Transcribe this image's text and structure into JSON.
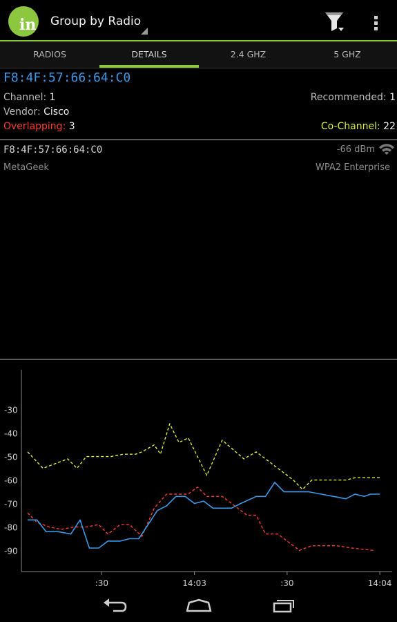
{
  "app": {
    "logo_text": "in",
    "title": "Group by Radio"
  },
  "tabs": [
    {
      "label": "RADIOS",
      "selected": false
    },
    {
      "label": "DETAILS",
      "selected": true
    },
    {
      "label": "2.4 GHZ",
      "selected": false
    },
    {
      "label": "5 GHZ",
      "selected": false
    }
  ],
  "details": {
    "mac": "F8:4F:57:66:64:C0",
    "channel_label": "Channel:",
    "channel_value": "1",
    "recommended_label": "Recommended:",
    "recommended_value": "1",
    "vendor_label": "Vendor:",
    "vendor_value": "Cisco",
    "overlapping_label": "Overlapping:",
    "overlapping_value": "3",
    "cochannel_label": "Co-Channel:",
    "cochannel_value": "22"
  },
  "access_point": {
    "mac": "F8:4F:57:66:64:C0",
    "signal": "-66 dBm",
    "vendor": "MetaGeek",
    "security": "WPA2 Enterprise"
  },
  "colors": {
    "accent": "#8dc63f",
    "selected_series": "#3c9ae8",
    "overlapping": "#ff3b2f",
    "cochannel": "#dcee3c"
  },
  "chart_data": {
    "type": "line",
    "y_ticks": [
      -30,
      -40,
      -50,
      -60,
      -70,
      -80,
      -90
    ],
    "ylim": [
      -99,
      -13
    ],
    "x_ticks": [
      {
        "label": ":30",
        "t": 27
      },
      {
        "label": "14:03",
        "t": 57
      },
      {
        "label": ":30",
        "t": 87
      },
      {
        "label": "14:04",
        "t": 117
      }
    ],
    "xlim": [
      1,
      121
    ],
    "series": [
      {
        "color": "#dcee3c",
        "dash": true,
        "points": [
          [
            3,
            -48
          ],
          [
            8,
            -55
          ],
          [
            14,
            -52
          ],
          [
            16,
            -51
          ],
          [
            19,
            -55
          ],
          [
            22,
            -50
          ],
          [
            30,
            -50
          ],
          [
            34,
            -49
          ],
          [
            38,
            -49
          ],
          [
            40,
            -48
          ],
          [
            44,
            -45
          ],
          [
            46,
            -49
          ],
          [
            49,
            -36
          ],
          [
            52,
            -44
          ],
          [
            55,
            -42
          ],
          [
            61,
            -58
          ],
          [
            66,
            -43
          ],
          [
            73,
            -51
          ],
          [
            77,
            -48
          ],
          [
            82,
            -53
          ],
          [
            86,
            -57
          ],
          [
            89,
            -60
          ],
          [
            92,
            -64
          ],
          [
            95,
            -60
          ],
          [
            106,
            -60
          ],
          [
            109,
            -59
          ],
          [
            117,
            -59
          ]
        ]
      },
      {
        "color": "#ff3b2f",
        "dash": true,
        "points": [
          [
            3,
            -74
          ],
          [
            6,
            -78
          ],
          [
            10,
            -80
          ],
          [
            14,
            -81
          ],
          [
            18,
            -80
          ],
          [
            22,
            -80
          ],
          [
            26,
            -79
          ],
          [
            29,
            -83
          ],
          [
            33,
            -79
          ],
          [
            36,
            -79
          ],
          [
            40,
            -84
          ],
          [
            44,
            -72
          ],
          [
            48,
            -66
          ],
          [
            55,
            -66
          ],
          [
            58,
            -63
          ],
          [
            61,
            -67
          ],
          [
            66,
            -67
          ],
          [
            71,
            -72
          ],
          [
            74,
            -75
          ],
          [
            77,
            -75
          ],
          [
            80,
            -83
          ],
          [
            84,
            -83
          ],
          [
            91,
            -90
          ],
          [
            95,
            -88
          ],
          [
            103,
            -88
          ],
          [
            108,
            -89
          ],
          [
            115,
            -90
          ]
        ]
      },
      {
        "color": "#3c9ae8",
        "dash": false,
        "points": [
          [
            3,
            -77
          ],
          [
            6,
            -77
          ],
          [
            9,
            -82
          ],
          [
            13,
            -82
          ],
          [
            17,
            -83
          ],
          [
            20,
            -77
          ],
          [
            23,
            -89
          ],
          [
            26,
            -89
          ],
          [
            29,
            -86
          ],
          [
            33,
            -86
          ],
          [
            36,
            -85
          ],
          [
            39,
            -85
          ],
          [
            45,
            -73
          ],
          [
            48,
            -71
          ],
          [
            51,
            -67
          ],
          [
            54,
            -67
          ],
          [
            57,
            -70
          ],
          [
            60,
            -69
          ],
          [
            63,
            -72
          ],
          [
            69,
            -72
          ],
          [
            72,
            -70
          ],
          [
            77,
            -67
          ],
          [
            80,
            -67
          ],
          [
            83,
            -61
          ],
          [
            86,
            -65
          ],
          [
            94,
            -65
          ],
          [
            98,
            -66
          ],
          [
            102,
            -67
          ],
          [
            106,
            -68
          ],
          [
            109,
            -66
          ],
          [
            112,
            -67
          ],
          [
            114,
            -66
          ],
          [
            117,
            -66
          ]
        ]
      }
    ]
  }
}
